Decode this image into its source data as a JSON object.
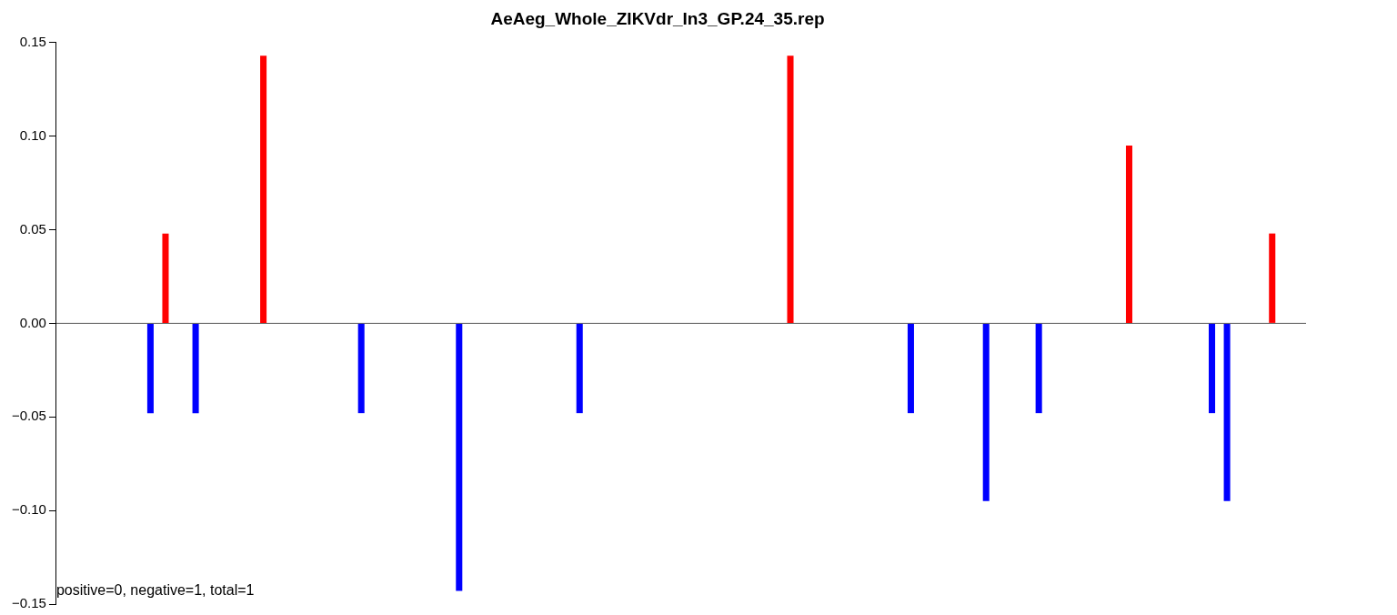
{
  "chart_data": {
    "type": "bar",
    "title": "AeAeg_Whole_ZIKVdr_In3_GP.24_35.rep",
    "categories": [
      null,
      null,
      null,
      null,
      null,
      null,
      null,
      null,
      null,
      null,
      null,
      null,
      null,
      null,
      null,
      null,
      null,
      null,
      null,
      null,
      null,
      null,
      null,
      null,
      null,
      null,
      null,
      null,
      null,
      null,
      null,
      null,
      null,
      null,
      null,
      null,
      null,
      null,
      null,
      null,
      null,
      null,
      null,
      null,
      null,
      null,
      null,
      null,
      null,
      null,
      null,
      null,
      null,
      null,
      null,
      null,
      null,
      null,
      null,
      null,
      null,
      null,
      null,
      null,
      null,
      null,
      null,
      null,
      null,
      null,
      null,
      null,
      null,
      null,
      null,
      null,
      null,
      null,
      null,
      null,
      null,
      null,
      null,
      null,
      null,
      null,
      null,
      null,
      null,
      null,
      null,
      null,
      null,
      null,
      null,
      null,
      null,
      null,
      null,
      null,
      null,
      null,
      null,
      null,
      null,
      null,
      null,
      null,
      null,
      null,
      null,
      null,
      null,
      null,
      null,
      null,
      null,
      null,
      null,
      null,
      null,
      null,
      null,
      null,
      null,
      null,
      null,
      null,
      null,
      null,
      null,
      null,
      null,
      null,
      null,
      null,
      null,
      null,
      null,
      null,
      null,
      null,
      null,
      null,
      null,
      null,
      null,
      null,
      null,
      null,
      null,
      null,
      null,
      null,
      null,
      null,
      null,
      null,
      null,
      null,
      null,
      null,
      null,
      null,
      null,
      null
    ],
    "values": [
      null,
      null,
      null,
      null,
      null,
      null,
      null,
      null,
      null,
      null,
      null,
      null,
      -0.048,
      null,
      0.048,
      null,
      null,
      null,
      -0.048,
      null,
      null,
      null,
      null,
      null,
      null,
      null,
      null,
      0.143,
      null,
      null,
      null,
      null,
      null,
      null,
      null,
      null,
      null,
      null,
      null,
      null,
      -0.048,
      null,
      null,
      null,
      null,
      null,
      null,
      null,
      null,
      null,
      null,
      null,
      null,
      -0.143,
      null,
      null,
      null,
      null,
      null,
      null,
      null,
      null,
      null,
      null,
      null,
      null,
      null,
      null,
      null,
      -0.048,
      null,
      null,
      null,
      null,
      null,
      null,
      null,
      null,
      null,
      null,
      null,
      null,
      null,
      null,
      null,
      null,
      null,
      null,
      null,
      null,
      null,
      null,
      null,
      null,
      null,
      null,
      null,
      0.143,
      null,
      null,
      null,
      null,
      null,
      null,
      null,
      null,
      null,
      null,
      null,
      null,
      null,
      null,
      null,
      -0.048,
      null,
      null,
      null,
      null,
      null,
      null,
      null,
      null,
      null,
      -0.095,
      null,
      null,
      null,
      null,
      null,
      null,
      -0.048,
      null,
      null,
      null,
      null,
      null,
      null,
      null,
      null,
      null,
      null,
      null,
      0.095,
      null,
      null,
      null,
      null,
      null,
      null,
      null,
      null,
      null,
      null,
      -0.048,
      null,
      -0.095,
      null,
      null,
      null,
      null,
      null,
      0.048,
      null,
      null,
      null,
      null
    ],
    "colors": [
      null,
      null,
      null,
      null,
      null,
      null,
      null,
      null,
      null,
      null,
      null,
      null,
      "#0000ff",
      null,
      "#ff0000",
      null,
      null,
      null,
      "#0000ff",
      null,
      null,
      null,
      null,
      null,
      null,
      null,
      null,
      "#ff0000",
      null,
      null,
      null,
      null,
      null,
      null,
      null,
      null,
      null,
      null,
      null,
      null,
      "#0000ff",
      null,
      null,
      null,
      null,
      null,
      null,
      null,
      null,
      null,
      null,
      null,
      null,
      "#0000ff",
      null,
      null,
      null,
      null,
      null,
      null,
      null,
      null,
      null,
      null,
      null,
      null,
      null,
      null,
      null,
      "#0000ff",
      null,
      null,
      null,
      null,
      null,
      null,
      null,
      null,
      null,
      null,
      null,
      null,
      null,
      null,
      null,
      null,
      null,
      null,
      null,
      null,
      null,
      null,
      null,
      null,
      null,
      null,
      null,
      "#ff0000",
      null,
      null,
      null,
      null,
      null,
      null,
      null,
      null,
      null,
      null,
      null,
      null,
      null,
      null,
      null,
      "#0000ff",
      null,
      null,
      null,
      null,
      null,
      null,
      null,
      null,
      null,
      "#0000ff",
      null,
      null,
      null,
      null,
      null,
      null,
      "#0000ff",
      null,
      null,
      null,
      null,
      null,
      null,
      null,
      null,
      null,
      null,
      null,
      "#ff0000",
      null,
      null,
      null,
      null,
      null,
      null,
      null,
      null,
      null,
      null,
      "#0000ff",
      null,
      "#0000ff",
      null,
      null,
      null,
      null,
      null,
      "#ff0000",
      null,
      null,
      null,
      null
    ],
    "ylim": [
      -0.15,
      0.15
    ],
    "yticks": [
      {
        "value": -0.15,
        "label": "−0.15"
      },
      {
        "value": -0.1,
        "label": "−0.10"
      },
      {
        "value": -0.05,
        "label": "−0.05"
      },
      {
        "value": 0,
        "label": "0.00"
      },
      {
        "value": 0.05,
        "label": "0.05"
      },
      {
        "value": 0.1,
        "label": "0.10"
      },
      {
        "value": 0.15,
        "label": "0.15"
      }
    ],
    "tick_labels": "y",
    "ref_lines": [
      {
        "axis": "y",
        "value": 0,
        "color": "#555555"
      }
    ],
    "annotations": [
      "positive=0, negative=1, total=1"
    ]
  }
}
